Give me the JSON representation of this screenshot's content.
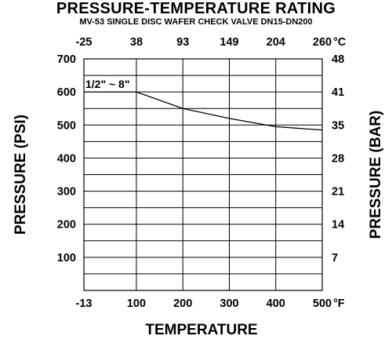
{
  "chart_data": {
    "type": "line",
    "title": "PRESSURE-TEMPERATURE RATING",
    "subtitle": "MV-53 SINGLE DISC WAFER CHECK VALVE DN15-DN200",
    "xlabel": "TEMPERATURE",
    "ylabel_left": "PRESSURE (PSI)",
    "ylabel_right": "PRESSURE (BAR)",
    "x_bottom_unit": "°F",
    "x_top_unit": "°C",
    "xlim": [
      -13,
      500
    ],
    "ylim": [
      0,
      700
    ],
    "x_bottom_ticks": [
      -13,
      100,
      200,
      300,
      400,
      500
    ],
    "x_bottom_labels": [
      "-13",
      "100",
      "200",
      "300",
      "400",
      "500"
    ],
    "x_top_ticks": [
      -13,
      100,
      200,
      300,
      400,
      500
    ],
    "x_top_labels": [
      "-25",
      "38",
      "93",
      "149",
      "204",
      "260"
    ],
    "y_left_ticks": [
      100,
      200,
      300,
      400,
      500,
      600,
      700
    ],
    "y_left_labels": [
      "100",
      "200",
      "300",
      "400",
      "500",
      "600",
      "700"
    ],
    "y_right_ticks": [
      100,
      200,
      300,
      400,
      500,
      600,
      700
    ],
    "y_right_labels": [
      "7",
      "14",
      "21",
      "28",
      "35",
      "41",
      "48"
    ],
    "grid": true,
    "series": [
      {
        "name": "1/2\" ~ 8\"",
        "x": [
          -13,
          100,
          200,
          300,
          400,
          500
        ],
        "y": [
          600,
          600,
          550,
          520,
          495,
          485
        ]
      }
    ],
    "series_line_color": "#000000"
  }
}
